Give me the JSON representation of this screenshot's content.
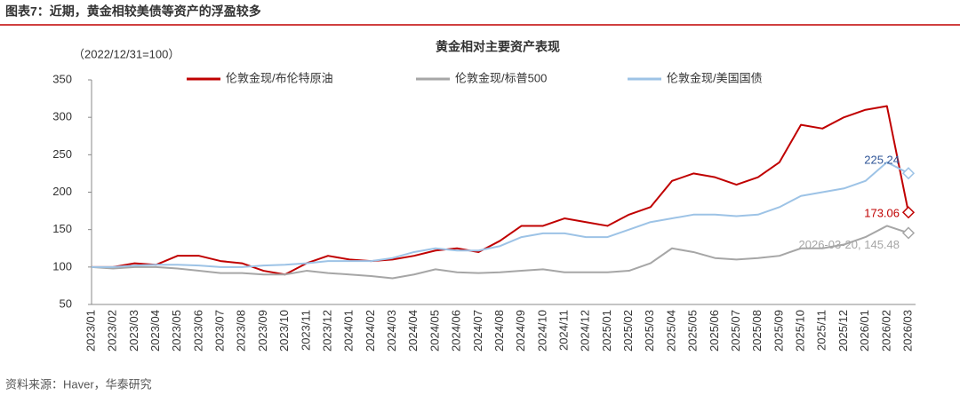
{
  "chart_data": {
    "type": "line",
    "header": "图表7：近期，黄金相较美债等资产的浮盈较多",
    "title": "黄金相对主要资产表现",
    "unit_note": "（2022/12/31=100）",
    "source": "资料来源：Haver，华泰研究",
    "categories": [
      "2023/01",
      "2023/02",
      "2023/03",
      "2023/04",
      "2023/05",
      "2023/06",
      "2023/07",
      "2023/08",
      "2023/09",
      "2023/10",
      "2023/11",
      "2023/12",
      "2024/01",
      "2024/02",
      "2024/03",
      "2024/04",
      "2024/05",
      "2024/06",
      "2024/07",
      "2024/08",
      "2024/09",
      "2024/10",
      "2024/11",
      "2024/12",
      "2025/01",
      "2025/02",
      "2025/03",
      "2025/04",
      "2025/05",
      "2025/06",
      "2025/07",
      "2025/08",
      "2025/09",
      "2025/10",
      "2025/11",
      "2025/12",
      "2026/01",
      "2026/02",
      "2026/03"
    ],
    "series": [
      {
        "name": "伦敦金现/布伦特原油",
        "color": "#c00000",
        "values": [
          100,
          100,
          105,
          103,
          115,
          115,
          108,
          105,
          95,
          90,
          105,
          115,
          110,
          108,
          110,
          115,
          122,
          125,
          120,
          135,
          155,
          155,
          165,
          160,
          155,
          170,
          180,
          215,
          225,
          220,
          210,
          220,
          240,
          290,
          285,
          300,
          310,
          315,
          173.06
        ],
        "value_labels": [
          null,
          null,
          null,
          null,
          null,
          null,
          null,
          null,
          null,
          null,
          null,
          null,
          null,
          null,
          null,
          null,
          null,
          null,
          null,
          null,
          null,
          null,
          null,
          null,
          null,
          null,
          null,
          null,
          null,
          null,
          null,
          null,
          null,
          null,
          null,
          null,
          null,
          null,
          "173.06"
        ]
      },
      {
        "name": "伦敦金现/标普500",
        "color": "#a6a6a6",
        "values": [
          100,
          98,
          100,
          100,
          98,
          95,
          92,
          92,
          90,
          90,
          95,
          92,
          90,
          88,
          85,
          90,
          97,
          93,
          92,
          93,
          95,
          97,
          93,
          93,
          93,
          95,
          105,
          125,
          120,
          112,
          110,
          112,
          115,
          125,
          125,
          130,
          140,
          155,
          145.48
        ],
        "value_labels": [
          null,
          null,
          null,
          null,
          null,
          null,
          null,
          null,
          null,
          null,
          null,
          null,
          null,
          null,
          null,
          null,
          null,
          null,
          null,
          null,
          null,
          null,
          null,
          null,
          null,
          null,
          null,
          null,
          null,
          null,
          null,
          null,
          null,
          null,
          null,
          null,
          null,
          null,
          "2026-03-20, 145.48"
        ]
      },
      {
        "name": "伦敦金现/美国国债",
        "color": "#9dc3e6",
        "values": [
          100,
          100,
          102,
          103,
          103,
          102,
          100,
          100,
          102,
          103,
          105,
          108,
          108,
          108,
          112,
          120,
          125,
          122,
          122,
          128,
          140,
          145,
          145,
          140,
          140,
          150,
          160,
          165,
          170,
          170,
          168,
          170,
          180,
          195,
          200,
          205,
          215,
          240,
          225.24
        ],
        "value_labels": [
          null,
          null,
          null,
          null,
          null,
          null,
          null,
          null,
          null,
          null,
          null,
          null,
          null,
          null,
          null,
          null,
          null,
          null,
          null,
          null,
          null,
          null,
          null,
          null,
          null,
          null,
          null,
          null,
          null,
          null,
          null,
          null,
          null,
          null,
          null,
          null,
          null,
          null,
          "225.24"
        ]
      }
    ],
    "ylim": [
      50,
      350
    ],
    "yticks": [
      50,
      100,
      150,
      200,
      250,
      300,
      350
    ],
    "grid": false
  }
}
